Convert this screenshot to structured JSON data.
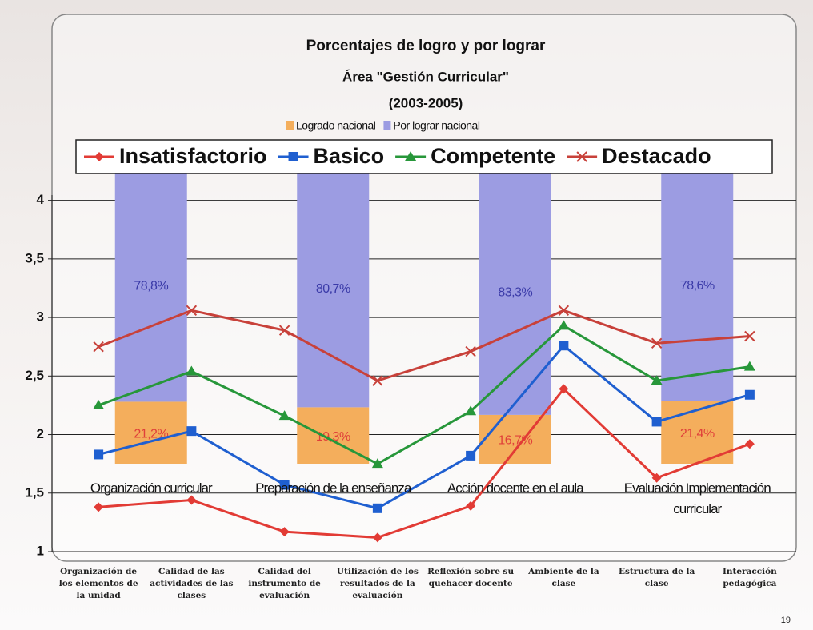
{
  "page_number": "19",
  "chart_data": [
    {
      "type": "line",
      "categories": [
        "Organización de los elementos de la unidad",
        "Calidad de las actividades de las clases",
        "Calidad del instrumento de evaluación",
        "Utilización de los resultados de la evaluación",
        "Reflexión sobre su quehacer docente",
        "Ambiente de la clase",
        "Estructura de la clase",
        "Interacción pedagógica"
      ],
      "series": [
        {
          "name": "Insatisfactorio",
          "color": "#e23b35",
          "marker": "diamond",
          "values": [
            1.38,
            1.44,
            1.17,
            1.12,
            1.39,
            2.39,
            1.63,
            1.92
          ]
        },
        {
          "name": "Basico",
          "color": "#1f5fd0",
          "marker": "square",
          "values": [
            1.83,
            2.03,
            1.57,
            1.37,
            1.82,
            2.76,
            2.11,
            2.34
          ]
        },
        {
          "name": "Competente",
          "color": "#27973a",
          "marker": "triangle",
          "values": [
            2.25,
            2.54,
            2.16,
            1.75,
            2.2,
            2.93,
            2.46,
            2.58
          ]
        },
        {
          "name": "Destacado",
          "color": "#c8413a",
          "marker": "cross",
          "values": [
            2.75,
            3.06,
            2.89,
            2.46,
            2.71,
            3.06,
            2.78,
            2.84
          ]
        }
      ],
      "ylim": [
        1,
        4.25
      ],
      "yticks": [
        1,
        {
          "value": 1.5,
          "label": "1,5"
        },
        2,
        {
          "value": 2.5,
          "label": "2,5"
        },
        3,
        {
          "value": 3.5,
          "label": "3,5"
        },
        4
      ],
      "grid": true,
      "legend": "top"
    },
    {
      "type": "stacked_bar",
      "title": "Porcentajes de logro y por lograr",
      "subtitle": "Área \"Gestión Curricular\"",
      "period": "(2003-2005)",
      "categories": [
        "Organización curricular",
        "Preparación de la enseñanza",
        "Acción docente en el aula",
        "Evaluación Implementación curricular"
      ],
      "series": [
        {
          "name": "Logrado nacional",
          "color": "#f4ae5c",
          "label_color": "#e0403a",
          "values": [
            21.2,
            19.3,
            16.7,
            21.4
          ],
          "value_labels": [
            "21,2%",
            "19,3%",
            "16,7%",
            "21,4%"
          ]
        },
        {
          "name": "Por lograr nacional",
          "color": "#9c9ce2",
          "label_color": "#3a3aa8",
          "values": [
            78.8,
            80.7,
            83.3,
            78.6
          ],
          "value_labels": [
            "78,8%",
            "80,7%",
            "83,3%",
            "78,6%"
          ]
        }
      ],
      "ylim": [
        0,
        100
      ]
    }
  ]
}
